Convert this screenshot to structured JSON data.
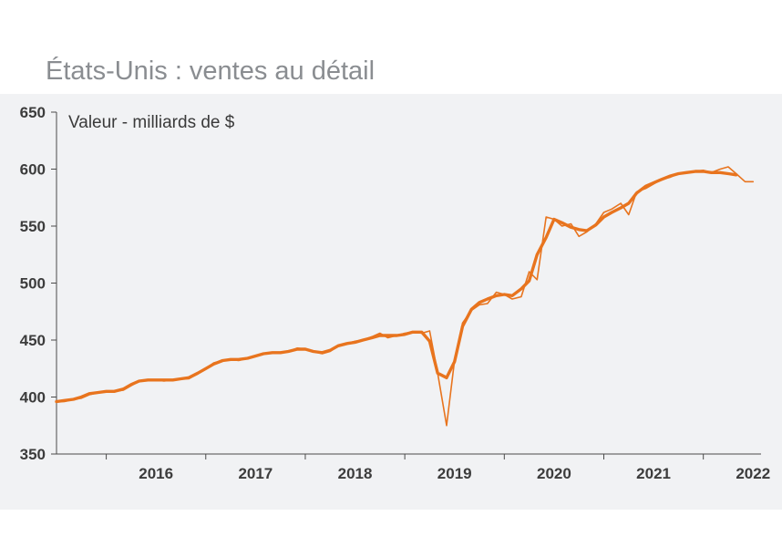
{
  "chart_data": {
    "type": "line",
    "title": "États-Unis : ventes au détail",
    "ylabel": "Valeur - milliards de $",
    "xlabel": "",
    "ylim": [
      350,
      650
    ],
    "yticks": [
      350,
      400,
      450,
      500,
      550,
      600,
      650
    ],
    "xticks": [
      "2016",
      "2017",
      "2018",
      "2019",
      "2020",
      "2021",
      "2022"
    ],
    "xlim": [
      2015.5,
      2022.58
    ],
    "grid": false,
    "legend": "none",
    "colors": {
      "line": "#e8741e",
      "background": "#f1f2f4",
      "axis": "#4a4a4a"
    },
    "series": [
      {
        "style": "thin",
        "x": [
          2015.5,
          2015.58,
          2015.67,
          2015.75,
          2015.83,
          2015.92,
          2016.0,
          2016.08,
          2016.17,
          2016.25,
          2016.33,
          2016.42,
          2016.5,
          2016.58,
          2016.67,
          2016.75,
          2016.83,
          2016.92,
          2017.0,
          2017.08,
          2017.17,
          2017.25,
          2017.33,
          2017.42,
          2017.5,
          2017.58,
          2017.67,
          2017.75,
          2017.83,
          2017.92,
          2018.0,
          2018.08,
          2018.17,
          2018.25,
          2018.33,
          2018.42,
          2018.5,
          2018.58,
          2018.67,
          2018.75,
          2018.83,
          2018.92,
          2019.0,
          2019.08,
          2019.17,
          2019.25,
          2019.33,
          2019.42,
          2019.5,
          2019.58,
          2019.67,
          2019.75,
          2019.83,
          2019.92,
          2020.0,
          2020.08,
          2020.17,
          2020.25,
          2020.33,
          2020.42,
          2020.5,
          2020.58,
          2020.67,
          2020.75,
          2020.83,
          2020.92,
          2021.0,
          2021.08,
          2021.17,
          2021.25,
          2021.33,
          2021.42,
          2021.5,
          2021.58,
          2021.67,
          2021.75,
          2021.83,
          2021.92,
          2022.0,
          2022.08,
          2022.17,
          2022.25,
          2022.33,
          2022.42,
          2022.5
        ],
        "values": [
          396,
          396,
          398,
          399,
          402,
          404,
          405,
          405,
          406,
          410,
          414,
          415,
          415,
          414,
          415,
          416,
          416,
          421,
          425,
          430,
          432,
          433,
          432,
          434,
          436,
          438,
          439,
          439,
          440,
          443,
          442,
          440,
          438,
          440,
          445,
          447,
          449,
          450,
          453,
          456,
          452,
          454,
          456,
          457,
          456,
          458,
          421,
          375,
          432,
          465,
          476,
          481,
          482,
          492,
          490,
          486,
          488,
          510,
          503,
          558,
          556,
          550,
          552,
          541,
          545,
          552,
          562,
          565,
          570,
          560,
          580,
          583,
          587,
          591,
          593,
          596,
          597,
          598,
          599,
          597,
          600,
          602,
          596,
          589,
          589
        ]
      },
      {
        "style": "thick",
        "x": [
          2015.5,
          2015.58,
          2015.67,
          2015.75,
          2015.83,
          2015.92,
          2016.0,
          2016.08,
          2016.17,
          2016.25,
          2016.33,
          2016.42,
          2016.5,
          2016.58,
          2016.67,
          2016.75,
          2016.83,
          2016.92,
          2017.0,
          2017.08,
          2017.17,
          2017.25,
          2017.33,
          2017.42,
          2017.5,
          2017.58,
          2017.67,
          2017.75,
          2017.83,
          2017.92,
          2018.0,
          2018.08,
          2018.17,
          2018.25,
          2018.33,
          2018.42,
          2018.5,
          2018.58,
          2018.67,
          2018.75,
          2018.83,
          2018.92,
          2019.0,
          2019.08,
          2019.17,
          2019.25,
          2019.33,
          2019.42,
          2019.5,
          2019.58,
          2019.67,
          2019.75,
          2019.83,
          2019.92,
          2020.0,
          2020.08,
          2020.17,
          2020.25,
          2020.33,
          2020.42,
          2020.5,
          2020.58,
          2020.67,
          2020.75,
          2020.83,
          2020.92,
          2021.0,
          2021.08,
          2021.17,
          2021.25,
          2021.33,
          2021.42,
          2021.5,
          2021.58,
          2021.67,
          2021.75,
          2021.83,
          2021.92,
          2022.0,
          2022.08,
          2022.17,
          2022.25,
          2022.33
        ],
        "values": [
          396,
          397,
          398,
          400,
          403,
          404,
          405,
          405,
          407,
          411,
          414,
          415,
          415,
          415,
          415,
          416,
          417,
          421,
          425,
          429,
          432,
          433,
          433,
          434,
          436,
          438,
          439,
          439,
          440,
          442,
          442,
          440,
          439,
          441,
          445,
          447,
          448,
          450,
          452,
          454,
          454,
          454,
          455,
          457,
          457,
          449,
          421,
          417,
          431,
          462,
          477,
          483,
          486,
          489,
          490,
          489,
          495,
          502,
          525,
          540,
          556,
          553,
          549,
          547,
          546,
          551,
          558,
          562,
          566,
          570,
          579,
          585,
          588,
          591,
          594,
          596,
          597,
          598,
          598,
          597,
          597,
          596,
          595
        ]
      }
    ]
  }
}
